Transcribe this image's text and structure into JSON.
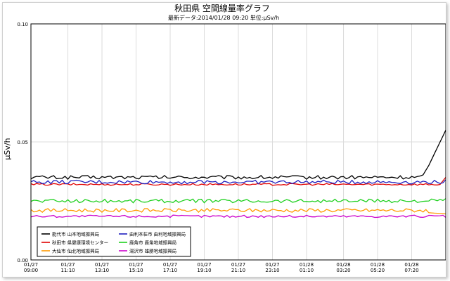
{
  "chart_data": {
    "type": "line",
    "title": "秋田県 空間線量率グラフ",
    "subtitle": "最新データ:2014/01/28 09:20 単位:μSv/h",
    "ylabel": "μSv/h",
    "ylim": [
      0,
      0.1
    ],
    "yticks": [
      "0.00",
      "0.05",
      "0.10"
    ],
    "grid": true,
    "legend_position": "bottom-left",
    "x_tick_labels": [
      [
        "01/27",
        "09:00"
      ],
      [
        "01/27",
        "11:10"
      ],
      [
        "01/27",
        "13:10"
      ],
      [
        "01/27",
        "15:10"
      ],
      [
        "01/27",
        "17:10"
      ],
      [
        "01/27",
        "19:10"
      ],
      [
        "01/27",
        "21:10"
      ],
      [
        "01/27",
        "23:10"
      ],
      [
        "01/28",
        "01:10"
      ],
      [
        "01/28",
        "03:20"
      ],
      [
        "01/28",
        "05:20"
      ],
      [
        "01/28",
        "07:20"
      ]
    ],
    "x_tick_times": [
      "2014-01-27T09:00",
      "2014-01-27T11:10",
      "2014-01-27T13:10",
      "2014-01-27T15:10",
      "2014-01-27T17:10",
      "2014-01-27T19:10",
      "2014-01-27T21:10",
      "2014-01-27T23:10",
      "2014-01-28T01:10",
      "2014-01-28T03:20",
      "2014-01-28T05:20",
      "2014-01-28T07:20"
    ],
    "x_start": "2014-01-27T09:00",
    "x_end": "2014-01-28T09:20",
    "series": [
      {
        "name": "能代市 山本地域振興局",
        "color": "#000000",
        "base": 0.035,
        "amp": 0.0008,
        "endpoints": [
          [
            "2014-01-28T08:00",
            0.036
          ],
          [
            "2014-01-28T08:20",
            0.04
          ],
          [
            "2014-01-28T09:00",
            0.05
          ],
          [
            "2014-01-28T09:20",
            0.055
          ]
        ]
      },
      {
        "name": "秋田市 県健康環境センター",
        "color": "#e00000",
        "base": 0.032,
        "amp": 0.0004,
        "endpoints": [
          [
            "2014-01-28T09:00",
            0.032
          ],
          [
            "2014-01-28T09:20",
            0.035
          ]
        ]
      },
      {
        "name": "大仙市 仙北地域振興局",
        "color": "#ff9900",
        "base": 0.021,
        "amp": 0.0008,
        "endpoints": [
          [
            "2014-01-28T08:20",
            0.02
          ],
          [
            "2014-01-28T09:20",
            0.0195
          ]
        ]
      },
      {
        "name": "由利本荘市 由利地域振興局",
        "color": "#1e1ebe",
        "base": 0.033,
        "amp": 0.0008,
        "endpoints": [
          [
            "2014-01-28T09:20",
            0.034
          ]
        ]
      },
      {
        "name": "鹿角市 鹿角地域振興局",
        "color": "#1ed01e",
        "base": 0.025,
        "amp": 0.0008,
        "endpoints": [
          [
            "2014-01-28T09:20",
            0.026
          ]
        ]
      },
      {
        "name": "湯沢市 雄勝地域振興局",
        "color": "#cc00cc",
        "base": 0.0185,
        "amp": 0.0005,
        "endpoints": [
          [
            "2014-01-28T09:20",
            0.018
          ]
        ]
      }
    ]
  }
}
